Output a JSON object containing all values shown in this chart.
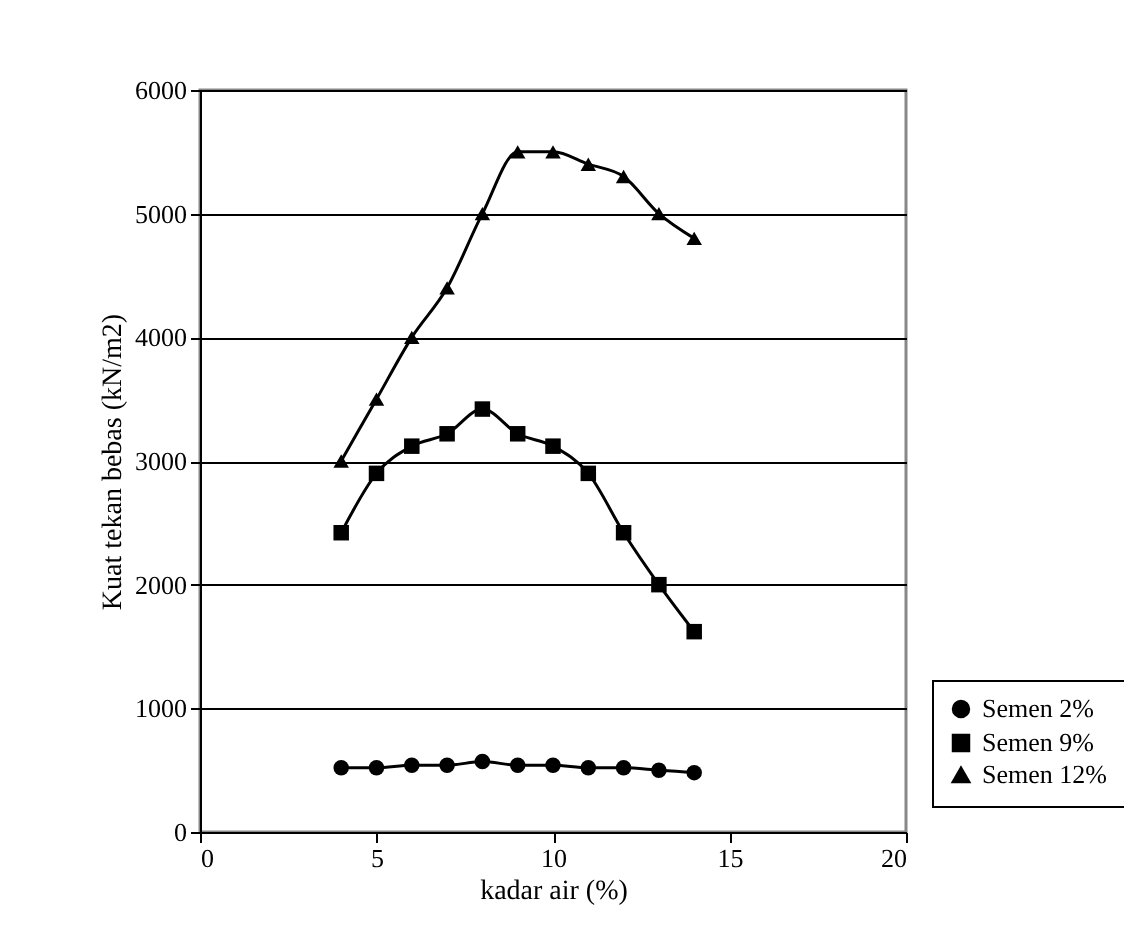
{
  "chart_data": {
    "type": "line",
    "xlabel": "kadar air (%)",
    "ylabel": "Kuat tekan bebas (kN/m2)",
    "x": [
      4,
      5,
      6,
      7,
      8,
      9,
      10,
      11,
      12,
      13,
      14
    ],
    "series": [
      {
        "name": "Semen 2%",
        "color": "#000000",
        "marker": "circle",
        "values": [
          520,
          520,
          540,
          540,
          570,
          540,
          540,
          520,
          520,
          500,
          480
        ]
      },
      {
        "name": "Semen 9%",
        "color": "#000000",
        "marker": "square",
        "values": [
          2420,
          2900,
          3120,
          3220,
          3420,
          3220,
          3120,
          2900,
          2420,
          2000,
          1620
        ]
      },
      {
        "name": "Semen 12%",
        "color": "#000000",
        "marker": "triangle",
        "values": [
          3000,
          3500,
          4000,
          4400,
          5000,
          5500,
          5500,
          5400,
          5300,
          5000,
          4800
        ]
      }
    ],
    "xlim": [
      0,
      20
    ],
    "xticks": [
      0,
      5,
      10,
      15,
      20
    ],
    "ylim": [
      0,
      6000
    ],
    "yticks": [
      0,
      1000,
      2000,
      3000,
      4000,
      5000,
      6000
    ],
    "grid": "y",
    "legend": "right",
    "line_style": "solid"
  }
}
